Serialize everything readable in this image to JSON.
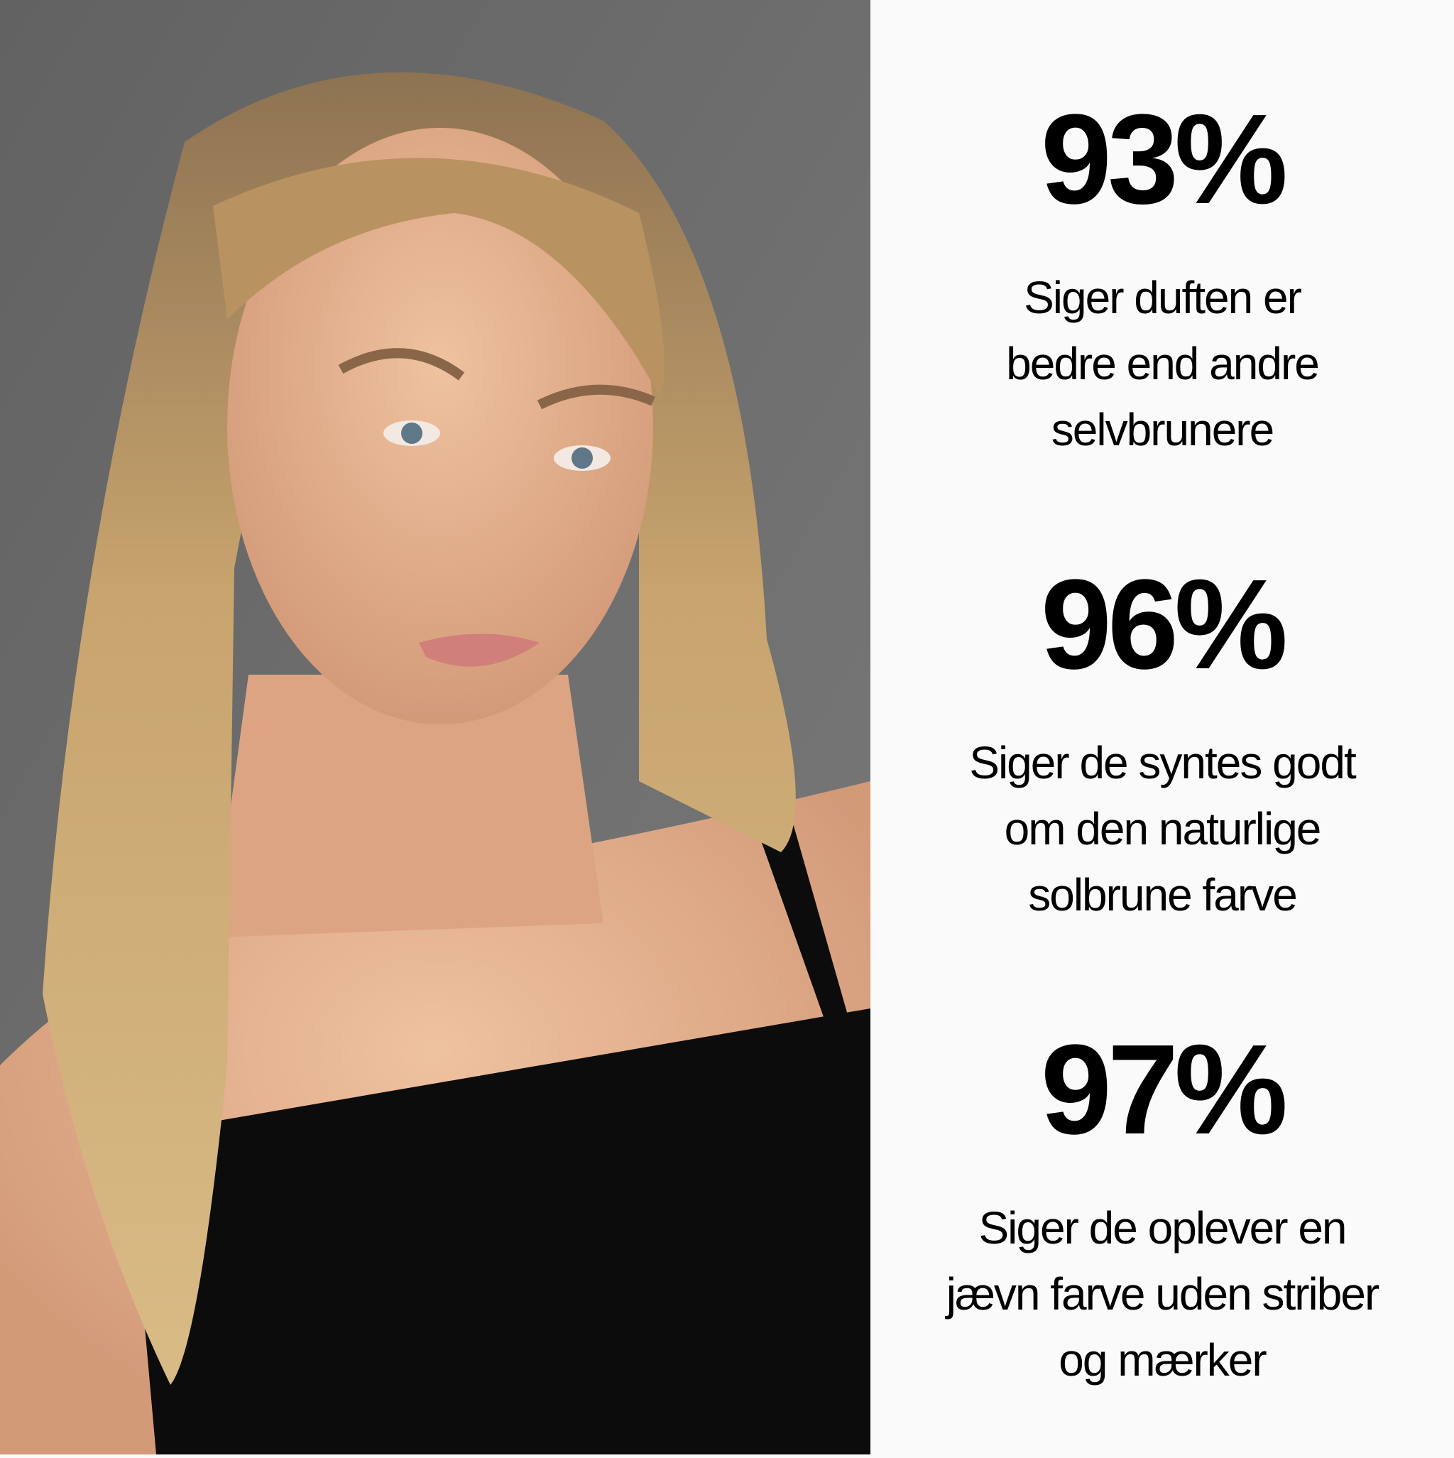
{
  "photo": {
    "alt_subject": "woman-selfie",
    "background_color": "#6b6b6b",
    "hair_color": "#c9a46c",
    "skin_color": "#e2ae8c",
    "top_color": "#0c0c0c"
  },
  "stats": [
    {
      "value": "93%",
      "lines": [
        "Siger duften er",
        "bedre end andre",
        "selvbrunere"
      ]
    },
    {
      "value": "96%",
      "lines": [
        "Siger de syntes godt",
        "om den naturlige",
        "solbrune farve"
      ]
    },
    {
      "value": "97%",
      "lines": [
        "Siger de oplever en",
        "jævn farve uden striber",
        "og mærker"
      ]
    }
  ],
  "panel_background": "#fafafa",
  "text_color": "#000000"
}
